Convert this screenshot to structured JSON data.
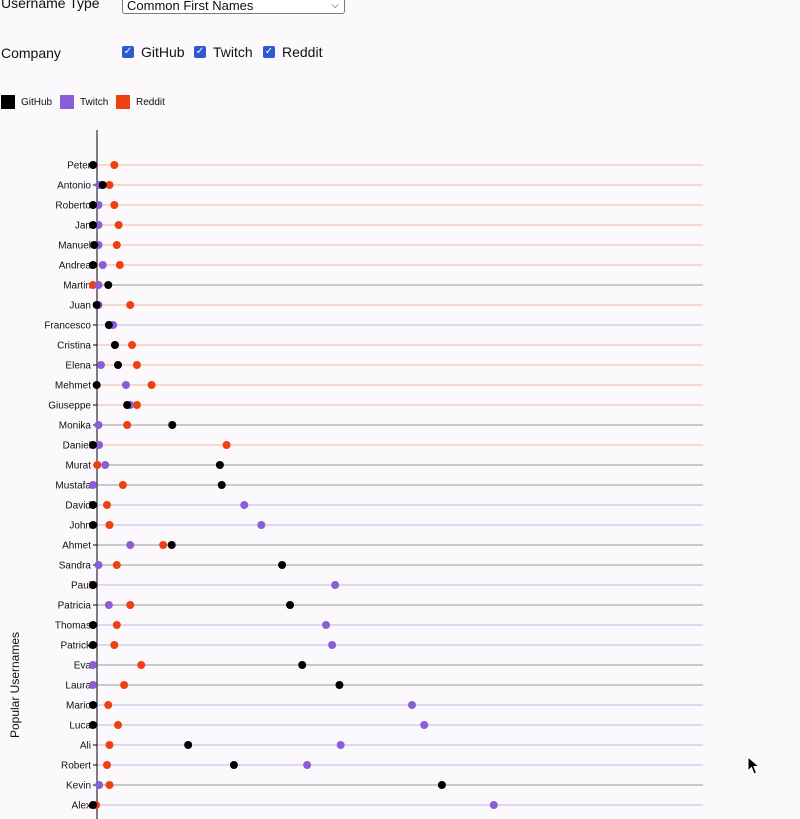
{
  "controls": {
    "username_type_label": "Username Type",
    "username_type_value": "Common First Names",
    "company_label": "Company",
    "companies": [
      {
        "label": "GitHub",
        "checked": true
      },
      {
        "label": "Twitch",
        "checked": true
      },
      {
        "label": "Reddit",
        "checked": true
      }
    ]
  },
  "legend": [
    {
      "label": "GitHub",
      "color": "#000000"
    },
    {
      "label": "Twitch",
      "color": "#8a5fd6"
    },
    {
      "label": "Reddit",
      "color": "#ee4011"
    }
  ],
  "chart_data": {
    "type": "scatter",
    "title": "",
    "ylabel": "Popular Usernames",
    "xlabel": "",
    "legend_position": "top-left",
    "categories": [
      "Peter",
      "Antonio",
      "Roberto",
      "Jan",
      "Manuel",
      "Andrea",
      "Martin",
      "Juan",
      "Francesco",
      "Cristina",
      "Elena",
      "Mehmet",
      "Giuseppe",
      "Monika",
      "Daniel",
      "Murat",
      "Mustafa",
      "David",
      "John",
      "Ahmet",
      "Sandra",
      "Paul",
      "Patricia",
      "Thomas",
      "Patrick",
      "Eva",
      "Laura",
      "Mario",
      "Luca",
      "Ali",
      "Robert",
      "Kevin",
      "Alex"
    ],
    "xlim": [
      0,
      100
    ],
    "series": [
      {
        "name": "GitHub",
        "values": [
          0,
          1.6,
          0,
          0,
          0.2,
          0,
          2.5,
          0.6,
          2.6,
          3.6,
          4.1,
          0.6,
          5.6,
          13.0,
          0,
          20.8,
          21.1,
          0,
          0,
          12.9,
          31.0,
          0,
          32.3,
          0,
          0,
          34.3,
          40.4,
          0,
          0,
          15.6,
          23.1,
          57.2,
          0
        ]
      },
      {
        "name": "Twitch",
        "values": [
          0,
          1.0,
          0.9,
          0.9,
          0.9,
          1.6,
          0.9,
          0.9,
          3.3,
          3.6,
          1.3,
          5.4,
          6.1,
          0.9,
          1.0,
          2.0,
          0,
          24.8,
          27.6,
          6.1,
          0.9,
          39.7,
          2.6,
          38.2,
          39.2,
          0,
          0,
          52.3,
          54.3,
          40.6,
          35.1,
          1.0,
          65.7
        ]
      },
      {
        "name": "Reddit",
        "values": [
          3.5,
          2.7,
          3.5,
          4.2,
          3.9,
          4.4,
          0,
          6.1,
          2.7,
          6.4,
          7.2,
          9.6,
          7.2,
          5.6,
          21.9,
          0.7,
          4.9,
          2.3,
          2.7,
          11.5,
          3.9,
          0,
          6.1,
          3.9,
          3.5,
          7.9,
          5.1,
          2.5,
          4.1,
          2.7,
          2.3,
          2.7,
          0.5
        ]
      }
    ]
  }
}
